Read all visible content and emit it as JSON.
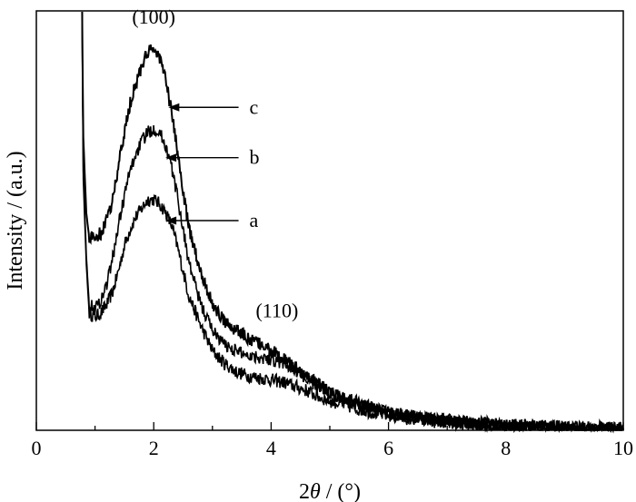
{
  "chart_data": {
    "type": "line",
    "title": "",
    "xlabel_prefix": "2",
    "xlabel_var": "θ",
    "xlabel_suffix": " / (°)",
    "ylabel": "Intensity / (a.u.)",
    "xlim": [
      0,
      10
    ],
    "ylim": [
      0,
      100
    ],
    "y_ticks_shown": false,
    "x_ticks": [
      0,
      2,
      4,
      6,
      8,
      10
    ],
    "x_tick_labels": [
      "0",
      "2",
      "4",
      "6",
      "8",
      "10"
    ],
    "grid": false,
    "series": [
      {
        "label": "a",
        "x": [
          0.78,
          0.8,
          0.85,
          0.9,
          1.0,
          1.1,
          1.2,
          1.3,
          1.4,
          1.5,
          1.6,
          1.7,
          1.8,
          1.9,
          2.0,
          2.1,
          2.2,
          2.3,
          2.4,
          2.5,
          2.6,
          2.8,
          3.0,
          3.2,
          3.4,
          3.6,
          3.8,
          4.0,
          4.2,
          4.4,
          4.6,
          4.8,
          5.0,
          5.5,
          6.0,
          6.5,
          7.0,
          7.5,
          8.0,
          8.5,
          9.0,
          9.5,
          10.0
        ],
        "y": [
          100,
          60,
          40,
          28,
          27,
          28,
          30,
          33,
          38,
          44,
          48,
          51,
          53,
          55,
          55,
          54,
          52,
          49,
          44,
          38,
          32,
          25,
          19,
          16,
          14,
          13,
          12.5,
          12,
          11.5,
          10.5,
          9.5,
          8,
          7,
          5,
          3.5,
          2.5,
          1.8,
          1.3,
          1.0,
          0.8,
          0.6,
          0.4,
          0.3
        ]
      },
      {
        "label": "b",
        "x": [
          0.78,
          0.8,
          0.85,
          0.9,
          1.0,
          1.1,
          1.2,
          1.3,
          1.4,
          1.5,
          1.6,
          1.7,
          1.8,
          1.9,
          2.0,
          2.1,
          2.2,
          2.3,
          2.4,
          2.5,
          2.6,
          2.8,
          3.0,
          3.2,
          3.4,
          3.6,
          3.8,
          4.0,
          4.2,
          4.4,
          4.6,
          4.8,
          5.0,
          5.5,
          6.0,
          6.5,
          7.0,
          7.5,
          8.0,
          8.5,
          9.0,
          9.5,
          10.0
        ],
        "y": [
          100,
          62,
          42,
          30,
          29,
          31,
          35,
          41,
          49,
          56,
          62,
          66,
          69,
          71,
          72,
          71,
          68,
          63,
          56,
          48,
          40,
          30,
          24,
          20.5,
          19,
          18,
          17.5,
          17,
          16,
          14.5,
          12.5,
          10.5,
          9,
          6.5,
          4.5,
          3.2,
          2.3,
          1.7,
          1.2,
          0.9,
          0.7,
          0.5,
          0.4
        ]
      },
      {
        "label": "c",
        "x": [
          0.78,
          0.8,
          0.85,
          0.9,
          1.0,
          1.1,
          1.2,
          1.3,
          1.4,
          1.5,
          1.6,
          1.7,
          1.8,
          1.9,
          2.0,
          2.1,
          2.2,
          2.3,
          2.4,
          2.5,
          2.6,
          2.8,
          3.0,
          3.2,
          3.4,
          3.6,
          3.8,
          4.0,
          4.2,
          4.4,
          4.6,
          4.8,
          5.0,
          5.5,
          6.0,
          6.5,
          7.0,
          7.5,
          8.0,
          8.5,
          9.0,
          9.5,
          10.0
        ],
        "y": [
          100,
          70,
          52,
          46,
          46,
          47,
          50,
          55,
          63,
          71,
          78,
          83,
          87,
          90,
          91,
          89,
          84,
          76,
          67,
          57,
          48,
          38,
          30,
          26,
          24,
          22,
          20.5,
          19,
          17,
          15,
          13,
          11,
          9,
          6,
          4.2,
          3.0,
          2.2,
          1.6,
          1.2,
          0.9,
          0.7,
          0.5,
          0.4
        ]
      }
    ],
    "annotations": [
      {
        "text": "(100)",
        "x": 2.0,
        "y": 97
      },
      {
        "text": "(110)",
        "x": 4.1,
        "y": 27
      }
    ],
    "series_labels": [
      {
        "text": "c",
        "arrow_to_x": 2.25,
        "arrow_to_y": 77,
        "label_x": 3.6,
        "label_y": 77
      },
      {
        "text": "b",
        "arrow_to_x": 2.2,
        "arrow_to_y": 65,
        "label_x": 3.6,
        "label_y": 65
      },
      {
        "text": "a",
        "arrow_to_x": 2.2,
        "arrow_to_y": 50,
        "label_x": 3.6,
        "label_y": 50
      }
    ]
  }
}
